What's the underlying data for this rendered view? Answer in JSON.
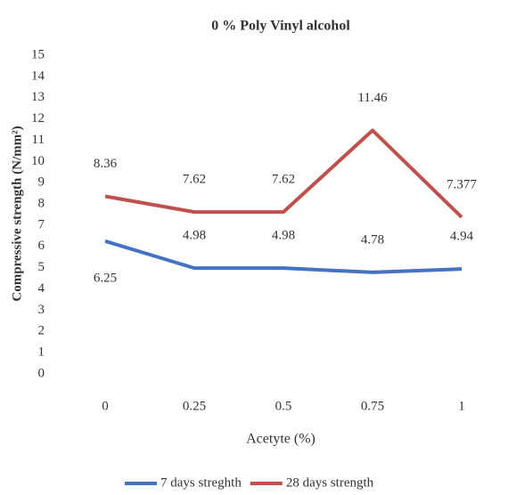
{
  "chart_data": {
    "type": "line",
    "title": "0 % Poly Vinyl alcohol",
    "x_label": "Acetyte (%)",
    "y_label": "Compressive strength (N/mm²)",
    "categories": [
      "0",
      "0.25",
      "0.5",
      "0.75",
      "1"
    ],
    "series": [
      {
        "name": "7 days streghth",
        "color": "#4472c4",
        "values": [
          6.25,
          4.98,
          4.98,
          4.78,
          4.94
        ]
      },
      {
        "name": "28 days strength",
        "color": "#c0504d",
        "values": [
          8.36,
          7.62,
          7.62,
          11.46,
          7.377
        ]
      }
    ],
    "ylim": [
      0,
      15
    ],
    "yticks": [
      0,
      1,
      2,
      3,
      4,
      5,
      6,
      7,
      8,
      9,
      10,
      11,
      12,
      13,
      14,
      15
    ],
    "grid": false,
    "legend": "bottom"
  }
}
